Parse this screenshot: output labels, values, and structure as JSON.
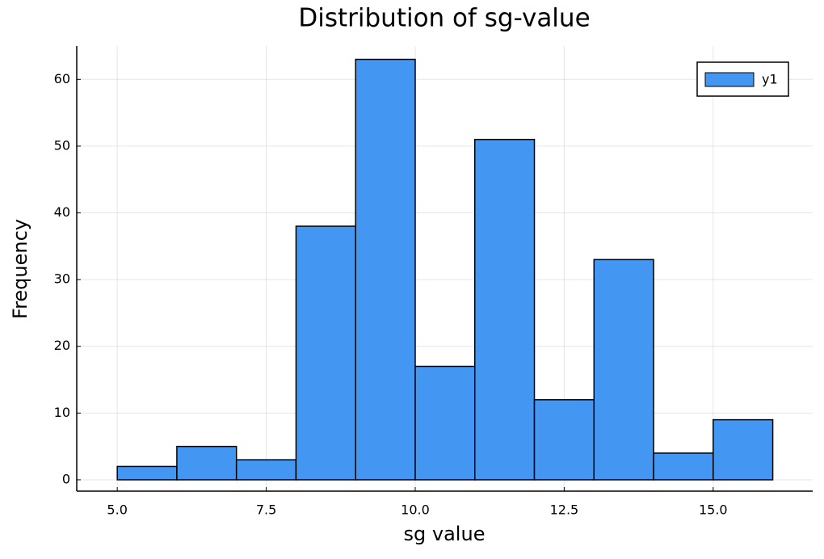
{
  "chart_data": {
    "type": "histogram",
    "title": "Distribution of sg-value",
    "xlabel": "sg value",
    "ylabel": "Frequency",
    "bins": [
      5,
      6,
      7,
      8,
      9,
      10,
      11,
      12,
      13,
      14,
      15,
      16
    ],
    "series": [
      {
        "name": "y1",
        "color": "#4496f3",
        "values": [
          2,
          5,
          3,
          38,
          63,
          17,
          51,
          12,
          33,
          4,
          9
        ]
      }
    ],
    "xlim": [
      4.32,
      16.67
    ],
    "ylim": [
      -1.7,
      65
    ],
    "xticks": [
      {
        "value": 5,
        "label": "5.0"
      },
      {
        "value": 7.5,
        "label": "7.5"
      },
      {
        "value": 10,
        "label": "10.0"
      },
      {
        "value": 12.5,
        "label": "12.5"
      },
      {
        "value": 15,
        "label": "15.0"
      }
    ],
    "yticks": [
      0,
      10,
      20,
      30,
      40,
      50,
      60
    ],
    "grid": true,
    "legend": "top-right"
  }
}
